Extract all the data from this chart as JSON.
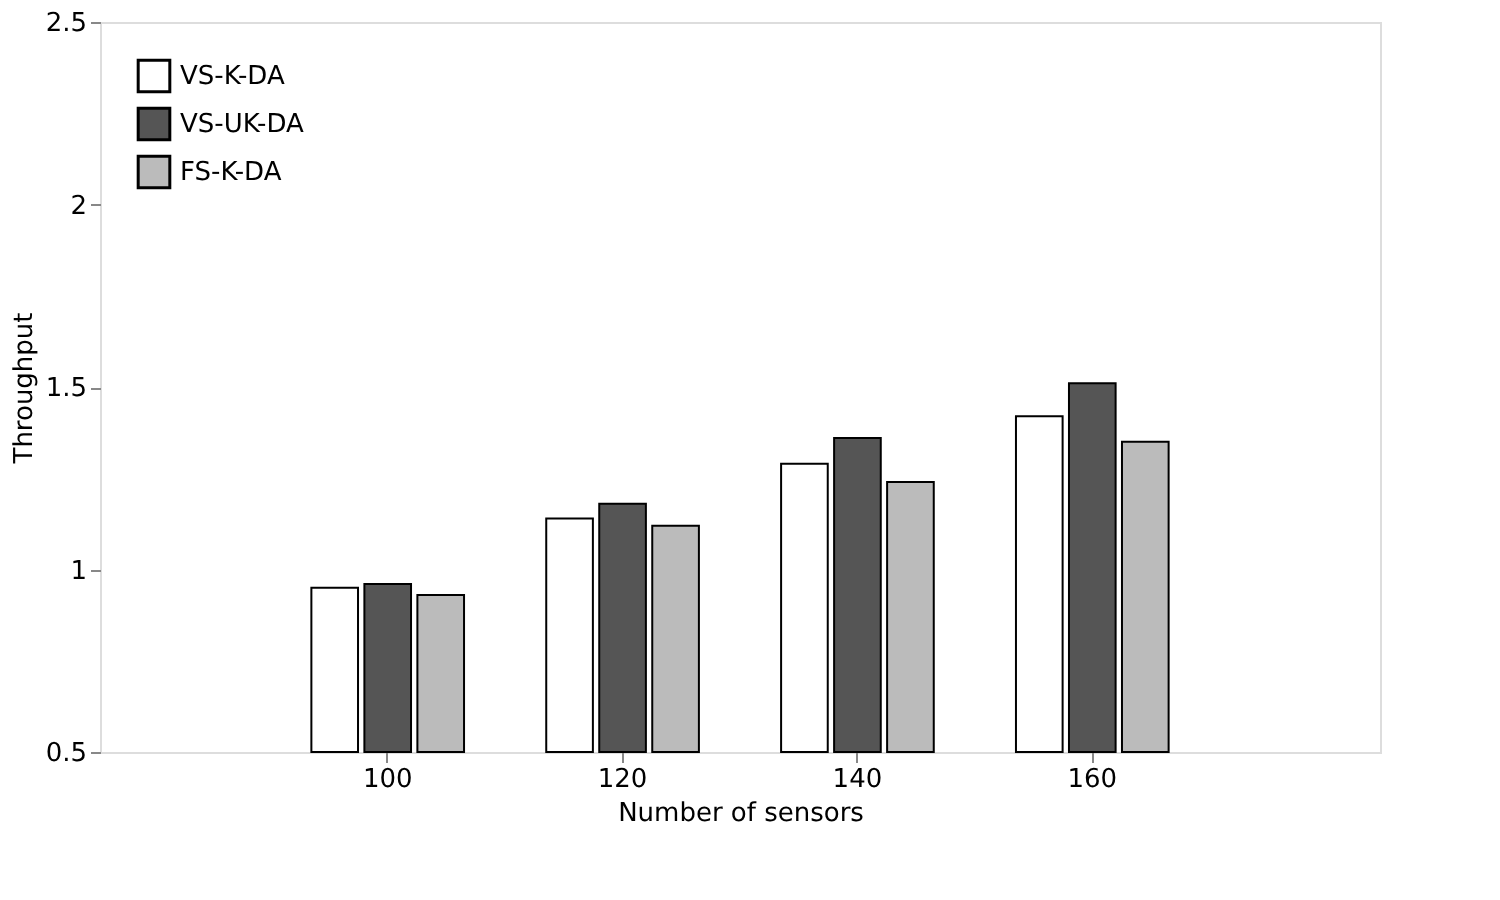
{
  "chart_data": {
    "type": "bar",
    "xlabel": "Number of sensors",
    "ylabel": "Throughput",
    "categories": [
      "100",
      "120",
      "140",
      "160"
    ],
    "series": [
      {
        "name": "VS-K-DA",
        "color": "#ffffff",
        "values": [
          0.95,
          1.14,
          1.29,
          1.42
        ]
      },
      {
        "name": "VS-UK-DA",
        "color": "#555555",
        "values": [
          0.96,
          1.18,
          1.36,
          1.51
        ]
      },
      {
        "name": "FS-K-DA",
        "color": "#bbbbbb",
        "values": [
          0.93,
          1.12,
          1.24,
          1.35
        ]
      }
    ],
    "ylim": [
      0.5,
      2.5
    ],
    "yticks": [
      0.5,
      1,
      1.5,
      2,
      2.5
    ],
    "grid": false,
    "legend": "top left"
  }
}
